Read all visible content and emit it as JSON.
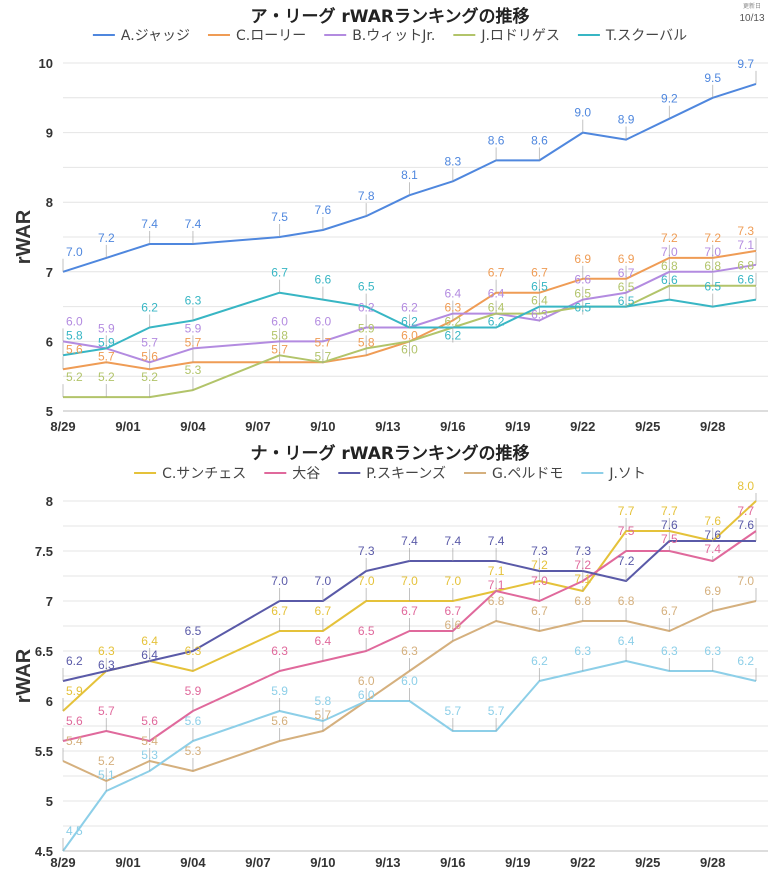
{
  "updated": {
    "label": "更新日",
    "date": "10/13"
  },
  "chart_data": [
    {
      "type": "line",
      "title": "ア・リーグ rWARランキングの推移",
      "ylabel": "rWAR",
      "xlabel": "",
      "ylim": [
        5,
        10
      ],
      "yticks": [
        "5",
        "6",
        "7",
        "8",
        "9",
        "10"
      ],
      "xticks": [
        "8/29",
        "9/01",
        "9/04",
        "9/07",
        "9/10",
        "9/13",
        "9/16",
        "9/19",
        "9/22",
        "9/25",
        "9/28"
      ],
      "grid": true,
      "legend": "top",
      "x": [
        "8/29",
        "8/31",
        "9/02",
        "9/04",
        "9/08",
        "9/10",
        "9/12",
        "9/14",
        "9/16",
        "9/18",
        "9/20",
        "9/22",
        "9/24",
        "9/26",
        "9/28",
        "9/30"
      ],
      "series": [
        {
          "name": "A.ジャッジ",
          "color": "#4f87de",
          "values": [
            7.0,
            7.2,
            7.4,
            7.4,
            7.5,
            7.6,
            7.8,
            8.1,
            8.3,
            8.6,
            8.6,
            9.0,
            8.9,
            9.2,
            9.5,
            9.7
          ]
        },
        {
          "name": "C.ローリー",
          "color": "#ef9c55",
          "values": [
            5.6,
            5.7,
            5.6,
            5.7,
            5.7,
            5.7,
            5.8,
            6.0,
            6.3,
            6.7,
            6.7,
            6.9,
            6.9,
            7.2,
            7.2,
            7.3
          ]
        },
        {
          "name": "B.ウィットJr.",
          "color": "#b38be0",
          "values": [
            6.0,
            5.9,
            5.7,
            5.9,
            6.0,
            6.0,
            6.2,
            6.2,
            6.4,
            6.4,
            6.3,
            6.6,
            6.7,
            7.0,
            7.0,
            7.1
          ]
        },
        {
          "name": "J.ロドリゲス",
          "color": "#b2c46a",
          "values": [
            5.2,
            5.2,
            5.2,
            5.3,
            5.8,
            5.7,
            5.9,
            6.0,
            6.2,
            6.4,
            6.4,
            6.5,
            6.5,
            6.8,
            6.8,
            6.8
          ]
        },
        {
          "name": "T.スクーバル",
          "color": "#38b6c4",
          "values": [
            5.8,
            5.9,
            6.2,
            6.3,
            6.7,
            6.6,
            6.5,
            6.2,
            6.2,
            6.2,
            6.5,
            6.5,
            6.5,
            6.6,
            6.5,
            6.6
          ]
        }
      ]
    },
    {
      "type": "line",
      "title": "ナ・リーグ rWARランキングの推移",
      "ylabel": "rWAR",
      "xlabel": "",
      "ylim": [
        4.5,
        8
      ],
      "yticks": [
        "4.5",
        "5",
        "5.5",
        "6",
        "6.5",
        "7",
        "7.5",
        "8"
      ],
      "xticks": [
        "8/29",
        "9/01",
        "9/04",
        "9/07",
        "9/10",
        "9/13",
        "9/16",
        "9/19",
        "9/22",
        "9/25",
        "9/28"
      ],
      "grid": true,
      "legend": "top",
      "x": [
        "8/29",
        "8/31",
        "9/02",
        "9/04",
        "9/08",
        "9/10",
        "9/12",
        "9/14",
        "9/16",
        "9/18",
        "9/20",
        "9/22",
        "9/24",
        "9/26",
        "9/28",
        "9/30"
      ],
      "series": [
        {
          "name": "C.サンチェス",
          "color": "#e5c23a",
          "values": [
            5.9,
            6.3,
            6.4,
            6.3,
            6.7,
            6.7,
            7.0,
            7.0,
            7.0,
            7.1,
            7.2,
            7.1,
            7.7,
            7.7,
            7.6,
            8.0
          ]
        },
        {
          "name": "大谷",
          "color": "#e0699c",
          "values": [
            5.6,
            5.7,
            5.6,
            5.9,
            6.3,
            6.4,
            6.5,
            6.7,
            6.7,
            7.1,
            7.0,
            7.2,
            7.5,
            7.5,
            7.4,
            7.7
          ]
        },
        {
          "name": "P.スキーンズ",
          "color": "#5a5aa8",
          "values": [
            6.2,
            6.3,
            6.4,
            6.5,
            7.0,
            7.0,
            7.3,
            7.4,
            7.4,
            7.4,
            7.3,
            7.3,
            7.2,
            7.6,
            7.6,
            7.6
          ]
        },
        {
          "name": "G.ペルドモ",
          "color": "#d5b07e",
          "values": [
            5.4,
            5.2,
            5.4,
            5.3,
            5.6,
            5.7,
            6.0,
            6.3,
            6.6,
            6.8,
            6.7,
            6.8,
            6.8,
            6.7,
            6.9,
            7.0
          ]
        },
        {
          "name": "J.ソト",
          "color": "#8dcfe8",
          "values": [
            4.5,
            5.1,
            5.3,
            5.6,
            5.9,
            5.8,
            6.0,
            6.0,
            5.7,
            5.7,
            6.2,
            6.3,
            6.4,
            6.3,
            6.3,
            6.2
          ]
        }
      ]
    }
  ]
}
